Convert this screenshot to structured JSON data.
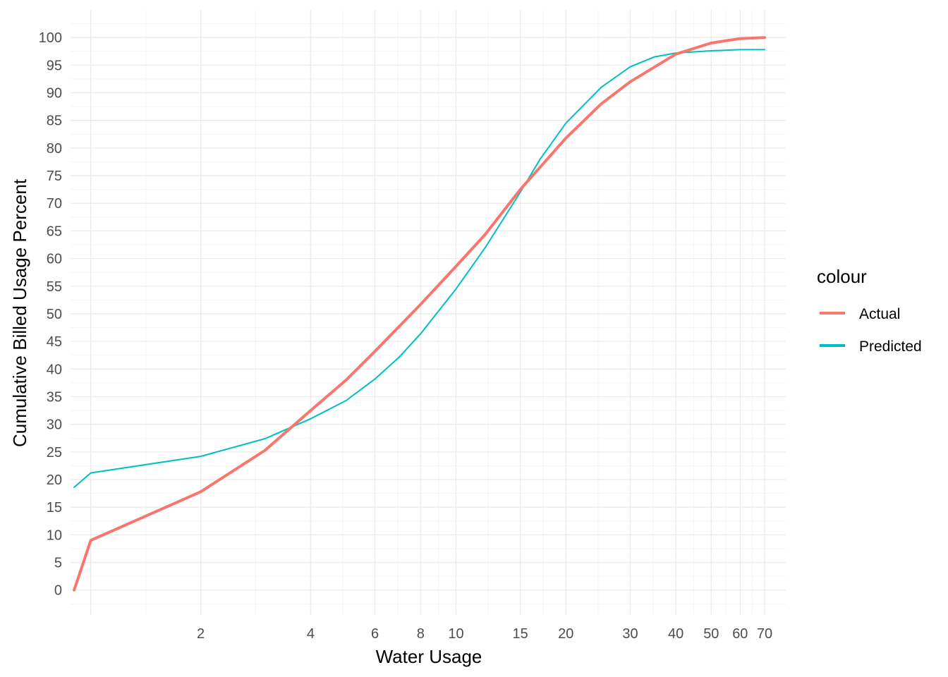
{
  "chart_data": {
    "type": "line",
    "xlabel": "Water Usage",
    "ylabel": "Cumulative Billed Usage Percent",
    "x_scale": "log",
    "xlim": [
      0.88,
      80
    ],
    "ylim": [
      -4.5,
      105
    ],
    "x_ticks": [
      2,
      4,
      6,
      8,
      10,
      15,
      20,
      30,
      40,
      50,
      60,
      70
    ],
    "x_tick_labels": [
      "2",
      "4",
      "6",
      "8",
      "10",
      "15",
      "20",
      "30",
      "40",
      "50",
      "60",
      "70"
    ],
    "y_ticks": [
      0,
      5,
      10,
      15,
      20,
      25,
      30,
      35,
      40,
      45,
      50,
      55,
      60,
      65,
      70,
      75,
      80,
      85,
      90,
      95,
      100
    ],
    "y_tick_labels": [
      "0",
      "5",
      "10",
      "15",
      "20",
      "25",
      "30",
      "35",
      "40",
      "45",
      "50",
      "55",
      "60",
      "65",
      "70",
      "75",
      "80",
      "85",
      "90",
      "95",
      "100"
    ],
    "grid": true,
    "legend": {
      "title": "colour",
      "position": "right"
    },
    "series": [
      {
        "name": "Actual",
        "color": "#F8766D",
        "points": [
          [
            0.9,
            0
          ],
          [
            1,
            9
          ],
          [
            2,
            17.8
          ],
          [
            3,
            25.3
          ],
          [
            4,
            32.5
          ],
          [
            5,
            38
          ],
          [
            6,
            43.2
          ],
          [
            8,
            51.7
          ],
          [
            10,
            58.6
          ],
          [
            12,
            64.3
          ],
          [
            15,
            72.5
          ],
          [
            20,
            81.8
          ],
          [
            25,
            88
          ],
          [
            30,
            92
          ],
          [
            40,
            97
          ],
          [
            50,
            99
          ],
          [
            60,
            99.8
          ],
          [
            70,
            100
          ]
        ]
      },
      {
        "name": "Predicted",
        "color": "#00BFC4",
        "points": [
          [
            0.9,
            18.6
          ],
          [
            1,
            21.2
          ],
          [
            2,
            24.2
          ],
          [
            3,
            27.4
          ],
          [
            4,
            31
          ],
          [
            5,
            34.3
          ],
          [
            6,
            38.2
          ],
          [
            7,
            42.2
          ],
          [
            8,
            46.4
          ],
          [
            10,
            54.5
          ],
          [
            12,
            61.9
          ],
          [
            15,
            72
          ],
          [
            17,
            78
          ],
          [
            20,
            84.5
          ],
          [
            25,
            91
          ],
          [
            30,
            94.7
          ],
          [
            35,
            96.5
          ],
          [
            40,
            97.2
          ],
          [
            50,
            97.6
          ],
          [
            60,
            97.8
          ],
          [
            70,
            97.8
          ]
        ]
      }
    ]
  }
}
